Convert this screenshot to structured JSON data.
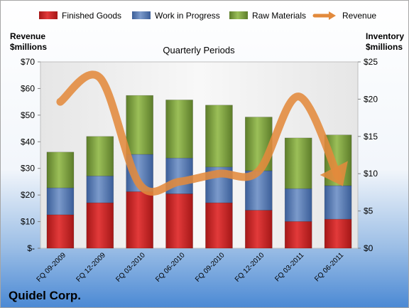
{
  "chart_data": {
    "type": "bar",
    "subtitle": "Quarterly Periods",
    "company": "Quidel Corp.",
    "left_axis_title": [
      "Revenue",
      "$millions"
    ],
    "right_axis_title": [
      "Inventory",
      "$millions"
    ],
    "left_axis": {
      "ylim": [
        0,
        70
      ],
      "ticks": [
        0,
        10,
        20,
        30,
        40,
        50,
        60,
        70
      ],
      "tick_labels": [
        "$-",
        "$10",
        "$20",
        "$30",
        "$40",
        "$50",
        "$60",
        "$70"
      ]
    },
    "right_axis": {
      "ylim": [
        0,
        25
      ],
      "ticks": [
        0,
        5,
        10,
        15,
        20,
        25
      ],
      "tick_labels": [
        "$0",
        "$5",
        "$10",
        "$15",
        "$20",
        "$25"
      ]
    },
    "categories": [
      "FQ 09-2009",
      "FQ 12-2009",
      "FQ 03-2010",
      "FQ 06-2010",
      "FQ 09-2010",
      "FQ 12-2010",
      "FQ 03-2011",
      "FQ 06-2011"
    ],
    "stacked": true,
    "series": [
      {
        "name": "Finished Goods",
        "axis": "right",
        "color": "#d42121",
        "values": [
          4.5,
          6.1,
          7.6,
          7.3,
          6.1,
          5.1,
          3.6,
          3.9
        ]
      },
      {
        "name": "Work in Progress",
        "axis": "right",
        "color": "#4f74b1",
        "values": [
          3.6,
          3.6,
          5.0,
          4.8,
          4.8,
          5.3,
          4.4,
          4.5
        ]
      },
      {
        "name": "Raw Materials",
        "axis": "right",
        "color": "#7ea13a",
        "values": [
          4.8,
          5.3,
          7.9,
          7.8,
          8.3,
          7.2,
          6.8,
          6.8
        ]
      },
      {
        "name": "Revenue",
        "type": "line",
        "axis": "left",
        "color": "#e28a3c",
        "values": [
          55,
          64,
          24,
          25,
          28,
          29,
          57,
          27
        ]
      }
    ],
    "legend_position": "top",
    "grid": false
  }
}
